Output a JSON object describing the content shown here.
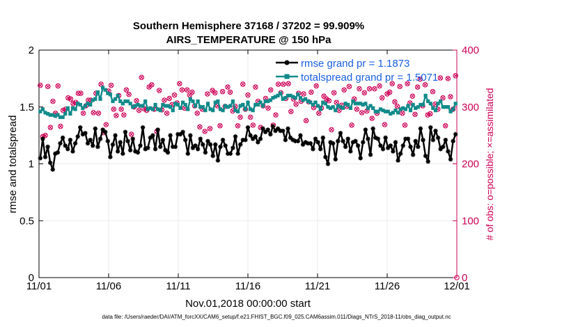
{
  "chart_data": {
    "type": "line",
    "title": "Southern Hemisphere 37168 / 37202 = 99.909%",
    "subtitle": "AIRS_TEMPERATURE @ 150 hPa",
    "xlabel": "Nov.01,2018 00:00:00 start",
    "ylabel_left": "rmse and totalspread",
    "ylabel_right": "# of obs: o=possible; ×=assimilated",
    "ylim_left": [
      0,
      2
    ],
    "ylim_right": [
      0,
      400
    ],
    "xlim": [
      0,
      30
    ],
    "x_ticks": [
      0,
      5,
      10,
      15,
      20,
      25,
      30
    ],
    "x_tick_labels": [
      "11/01",
      "11/06",
      "11/11",
      "11/16",
      "11/21",
      "11/26",
      "12/01"
    ],
    "y_ticks_left": [
      "0",
      "0.5",
      "1",
      "1.5",
      "2"
    ],
    "y_ticks_right": [
      "0",
      "100",
      "200",
      "300",
      "400"
    ],
    "grid": true,
    "legend": "top-right",
    "colors": {
      "rmse": "#000000",
      "spread": "#118a8a",
      "obs": "#cc0055",
      "legend_text": "#1a5fe0"
    },
    "series": [
      {
        "name": "rmse grand pr = 1.1873",
        "axis": "left",
        "values": [
          1.05,
          1.22,
          1.06,
          1.15,
          1.01,
          0.95,
          1.09,
          1.1,
          1.18,
          1.23,
          1.16,
          1.13,
          1.21,
          1.11,
          1.18,
          1.24,
          1.32,
          1.26,
          1.27,
          1.18,
          1.21,
          1.16,
          1.31,
          1.15,
          1.22,
          1.3,
          1.28,
          1.2,
          1.06,
          1.17,
          1.25,
          1.11,
          1.19,
          1.09,
          1.28,
          1.2,
          1.12,
          1.22,
          1.11,
          1.1,
          1.16,
          1.32,
          1.13,
          1.14,
          1.23,
          1.25,
          1.13,
          1.3,
          1.15,
          1.21,
          1.12,
          1.1,
          1.25,
          1.15,
          1.15,
          1.26,
          1.26,
          1.28,
          1.21,
          1.09,
          1.25,
          1.14,
          1.16,
          1.13,
          1.22,
          1.17,
          1.1,
          1.2,
          1.17,
          1.07,
          1.17,
          1.03,
          1.15,
          1.21,
          1.16,
          1.09,
          1.09,
          1.14,
          1.24,
          1.09,
          1.17,
          1.21,
          1.21,
          1.32,
          1.25,
          1.22,
          1.24,
          1.19,
          1.22,
          1.31,
          1.28,
          1.3,
          1.26,
          1.33,
          1.29,
          1.31,
          1.29,
          1.29,
          1.21,
          1.31,
          1.23,
          1.21,
          1.2,
          1.2,
          1.25,
          1.17,
          1.19,
          1.18,
          1.18,
          1.13,
          1.22,
          1.19,
          1.13,
          1.23,
          1.06,
          1.0,
          1.19,
          1.18,
          1.04,
          1.2,
          1.27,
          1.2,
          1.15,
          1.22,
          1.11,
          1.19,
          1.2,
          1.16,
          1.05,
          1.19,
          1.3,
          1.22,
          1.08,
          1.31,
          1.23,
          1.22,
          1.16,
          1.13,
          1.23,
          1.14,
          1.16,
          1.11,
          1.19,
          1.03,
          1.09,
          1.16,
          1.22,
          1.22,
          1.15,
          1.08,
          1.2,
          1.15,
          1.31,
          1.21,
          1.07,
          1.02,
          1.32,
          1.21,
          1.29,
          1.23,
          1.13,
          1.15,
          1.21,
          1.11,
          1.04,
          1.2,
          1.26
        ]
      },
      {
        "name": "totalspread grand pr = 1.5071",
        "axis": "left",
        "values": [
          1.46,
          1.48,
          1.45,
          1.44,
          1.43,
          1.43,
          1.42,
          1.43,
          1.41,
          1.41,
          1.44,
          1.49,
          1.44,
          1.49,
          1.48,
          1.53,
          1.52,
          1.49,
          1.51,
          1.53,
          1.52,
          1.56,
          1.57,
          1.63,
          1.57,
          1.67,
          1.65,
          1.62,
          1.61,
          1.55,
          1.57,
          1.6,
          1.55,
          1.53,
          1.55,
          1.55,
          1.53,
          1.5,
          1.51,
          1.52,
          1.51,
          1.51,
          1.55,
          1.48,
          1.49,
          1.48,
          1.52,
          1.48,
          1.47,
          1.52,
          1.51,
          1.51,
          1.5,
          1.47,
          1.53,
          1.52,
          1.49,
          1.54,
          1.52,
          1.48,
          1.57,
          1.55,
          1.51,
          1.55,
          1.5,
          1.5,
          1.47,
          1.53,
          1.48,
          1.47,
          1.54,
          1.55,
          1.48,
          1.47,
          1.51,
          1.5,
          1.51,
          1.55,
          1.47,
          1.46,
          1.51,
          1.52,
          1.48,
          1.54,
          1.48,
          1.47,
          1.52,
          1.52,
          1.54,
          1.51,
          1.55,
          1.55,
          1.56,
          1.58,
          1.59,
          1.6,
          1.62,
          1.57,
          1.58,
          1.6,
          1.6,
          1.59,
          1.58,
          1.61,
          1.58,
          1.56,
          1.57,
          1.55,
          1.54,
          1.52,
          1.54,
          1.51,
          1.48,
          1.54,
          1.53,
          1.5,
          1.49,
          1.5,
          1.47,
          1.51,
          1.5,
          1.49,
          1.53,
          1.52,
          1.49,
          1.55,
          1.53,
          1.53,
          1.53,
          1.52,
          1.53,
          1.49,
          1.51,
          1.49,
          1.46,
          1.46,
          1.48,
          1.47,
          1.46,
          1.46,
          1.44,
          1.45,
          1.47,
          1.45,
          1.48,
          1.49,
          1.48,
          1.51,
          1.47,
          1.52,
          1.49,
          1.5,
          1.52,
          1.52,
          1.6,
          1.55,
          1.53,
          1.49,
          1.47,
          1.53,
          1.55,
          1.5,
          1.5,
          1.5,
          1.46,
          1.48,
          1.53
        ]
      },
      {
        "name": "# of obs possible",
        "axis": "right",
        "marker": "o",
        "values": [
          338,
          248,
          250,
          336,
          264,
          310,
          289,
          337,
          266,
          294,
          296,
          316,
          314,
          306,
          308,
          324,
          324,
          289,
          302,
          312,
          312,
          290,
          324,
          289,
          340,
          255,
          269,
          328,
          338,
          296,
          285,
          320,
          296,
          286,
          330,
          322,
          252,
          300,
          311,
          294,
          352,
          297,
          294,
          335,
          339,
          296,
          257,
          329,
          295,
          312,
          289,
          315,
          304,
          321,
          307,
          341,
          330,
          298,
          330,
          321,
          326,
          302,
          289,
          265,
          296,
          257,
          323,
          262,
          329,
          325,
          302,
          267,
          327,
          301,
          335,
          326,
          293,
          301,
          267,
          282,
          340,
          296,
          321,
          282,
          268,
          335,
          310,
          264,
          302,
          315,
          298,
          330,
          268,
          286,
          340,
          325,
          340,
          315,
          341,
          292,
          314,
          305,
          324,
          310,
          323,
          276,
          309,
          326,
          299,
          337,
          289,
          298,
          319,
          314,
          311,
          260,
          325,
          308,
          294,
          303,
          330,
          301,
          336,
          268,
          314,
          296,
          332,
          290,
          325,
          293,
          332,
          280,
          332,
          289,
          337,
          316,
          269,
          323,
          326,
          341,
          309,
          301,
          336,
          289,
          268,
          341,
          307,
          319,
          287,
          335,
          349,
          302,
          339,
          286,
          288,
          327,
          305,
          296,
          351,
          316,
          267,
          350,
          318,
          296,
          355
        ]
      },
      {
        "name": "# of obs assimilated",
        "axis": "right",
        "marker": "x",
        "values": [
          338,
          248,
          250,
          336,
          264,
          310,
          289,
          337,
          266,
          294,
          296,
          316,
          314,
          306,
          308,
          324,
          324,
          289,
          302,
          312,
          312,
          290,
          324,
          289,
          340,
          255,
          269,
          328,
          338,
          296,
          285,
          320,
          296,
          286,
          330,
          322,
          252,
          300,
          311,
          294,
          352,
          297,
          294,
          335,
          339,
          296,
          257,
          329,
          295,
          312,
          289,
          315,
          304,
          321,
          307,
          341,
          330,
          298,
          330,
          321,
          326,
          302,
          289,
          265,
          296,
          257,
          323,
          262,
          329,
          325,
          302,
          267,
          327,
          301,
          335,
          326,
          293,
          301,
          267,
          282,
          340,
          296,
          321,
          282,
          268,
          335,
          310,
          264,
          302,
          315,
          298,
          330,
          268,
          286,
          340,
          325,
          340,
          315,
          341,
          292,
          314,
          305,
          324,
          310,
          323,
          276,
          309,
          326,
          299,
          337,
          289,
          298,
          319,
          314,
          311,
          260,
          325,
          308,
          294,
          303,
          330,
          301,
          336,
          268,
          314,
          296,
          332,
          290,
          325,
          293,
          332,
          280,
          332,
          289,
          337,
          316,
          269,
          323,
          326,
          341,
          309,
          301,
          336,
          289,
          268,
          341,
          307,
          319,
          287,
          335,
          349,
          302,
          339,
          286,
          288,
          327,
          305,
          296,
          351,
          316,
          267,
          350,
          318,
          296,
          355
        ]
      }
    ],
    "legend_entries": [
      "rmse grand pr = 1.1873",
      "totalspread grand pr = 1.5071"
    ],
    "footer": "data file: /Users/raeder/DAI/ATM_forcXX/CAM6_setup/f.e21.FHIST_BGC.f09_025.CAM6assim.011/Diags_NTrS_2018-11/obs_diag_output.nc"
  }
}
